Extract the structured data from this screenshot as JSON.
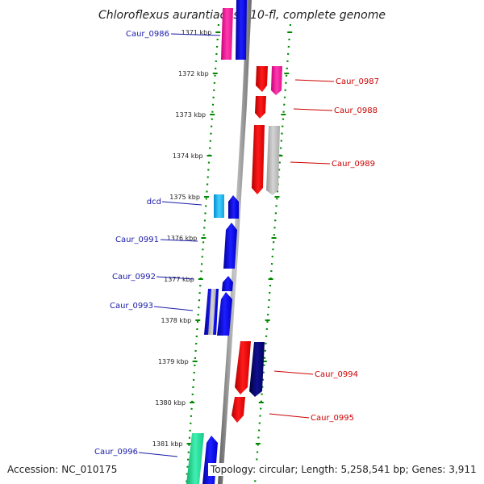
{
  "title": "Chloroflexus aurantiacus J-10-fl, complete genome",
  "footer": {
    "accession": "Accession: NC_010175",
    "topology": "Topology: circular; Length: 5,258,541 bp; Genes: 3,911"
  },
  "axis_ticks": [
    "1371 kbp",
    "1372 kbp",
    "1373 kbp",
    "1374 kbp",
    "1375 kbp",
    "1376 kbp",
    "1377 kbp",
    "1378 kbp",
    "1379 kbp",
    "1380 kbp",
    "1381 kbp"
  ],
  "genes_left": [
    {
      "name": "Caur_0986"
    },
    {
      "name": "dcd"
    },
    {
      "name": "Caur_0991"
    },
    {
      "name": "Caur_0992"
    },
    {
      "name": "Caur_0993"
    },
    {
      "name": "Caur_0996"
    }
  ],
  "genes_right": [
    {
      "name": "Caur_0987"
    },
    {
      "name": "Caur_0988"
    },
    {
      "name": "Caur_0989"
    },
    {
      "name": "Caur_0994"
    },
    {
      "name": "Caur_0995"
    }
  ],
  "colors": {
    "forward_gene": "#0000ee",
    "reverse_gene": "#ee0000",
    "pink_gene": "#ff2aa0",
    "grey_gene": "#b8b8b8",
    "cyan_gene": "#22bbee",
    "navy_gene": "#000066",
    "teal_gene": "#22dd99",
    "dotted_line": "#008800",
    "backbone": "#808080"
  }
}
